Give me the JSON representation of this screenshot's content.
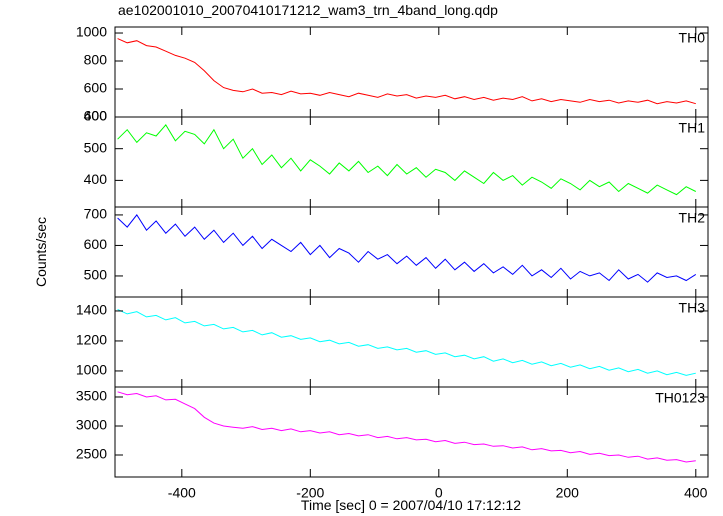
{
  "title": "ae102001010_20070410171212_wam3_trn_4band_long.qdp",
  "y_label": "Counts/sec",
  "x_label": "Time [sec] 0 = 2007/04/10 17:12:12",
  "chart_data": [
    {
      "type": "line",
      "xlim": [
        -504,
        419
      ],
      "xticks": [
        -400,
        -200,
        0,
        200,
        400
      ],
      "ylim": [
        400,
        1043
      ],
      "yticks": [
        400,
        600,
        800,
        1000
      ],
      "x": [
        -500,
        -485,
        -470,
        -455,
        -440,
        -425,
        -410,
        -395,
        -380,
        -365,
        -350,
        -335,
        -320,
        -305,
        -290,
        -275,
        -260,
        -245,
        -230,
        -215,
        -200,
        -185,
        -170,
        -155,
        -140,
        -125,
        -110,
        -95,
        -80,
        -65,
        -50,
        -35,
        -20,
        -5,
        10,
        25,
        40,
        55,
        70,
        85,
        100,
        115,
        130,
        145,
        160,
        175,
        190,
        205,
        220,
        235,
        250,
        265,
        280,
        295,
        310,
        325,
        340,
        355,
        370,
        385,
        400
      ],
      "series": [
        {
          "name": "TH0",
          "color": "#ff0000",
          "values": [
            960,
            930,
            945,
            910,
            900,
            870,
            840,
            820,
            790,
            730,
            660,
            610,
            590,
            580,
            600,
            570,
            575,
            560,
            585,
            565,
            570,
            555,
            575,
            560,
            545,
            570,
            555,
            540,
            565,
            550,
            560,
            535,
            550,
            540,
            555,
            530,
            545,
            525,
            540,
            520,
            535,
            525,
            545,
            515,
            530,
            510,
            525,
            515,
            505,
            525,
            510,
            520,
            500,
            515,
            505,
            520,
            495,
            510,
            500,
            515,
            495
          ]
        }
      ]
    },
    {
      "type": "line",
      "xlim": [
        -504,
        419
      ],
      "xticks": [
        -400,
        -200,
        0,
        200,
        400
      ],
      "ylim": [
        316,
        600
      ],
      "yticks": [
        400,
        500,
        600
      ],
      "x": [
        -500,
        -485,
        -470,
        -455,
        -440,
        -425,
        -410,
        -395,
        -380,
        -365,
        -350,
        -335,
        -320,
        -305,
        -290,
        -275,
        -260,
        -245,
        -230,
        -215,
        -200,
        -185,
        -170,
        -155,
        -140,
        -125,
        -110,
        -95,
        -80,
        -65,
        -50,
        -35,
        -20,
        -5,
        10,
        25,
        40,
        55,
        70,
        85,
        100,
        115,
        130,
        145,
        160,
        175,
        190,
        205,
        220,
        235,
        250,
        265,
        280,
        295,
        310,
        325,
        340,
        355,
        370,
        385,
        400
      ],
      "series": [
        {
          "name": "TH1",
          "color": "#00ff00",
          "values": [
            530,
            560,
            520,
            550,
            540,
            575,
            525,
            555,
            545,
            515,
            560,
            500,
            530,
            470,
            500,
            450,
            480,
            440,
            470,
            430,
            465,
            445,
            420,
            455,
            430,
            460,
            425,
            445,
            415,
            450,
            420,
            440,
            410,
            435,
            425,
            400,
            430,
            410,
            390,
            425,
            400,
            415,
            385,
            410,
            395,
            375,
            405,
            390,
            370,
            400,
            380,
            395,
            365,
            390,
            375,
            360,
            385,
            370,
            355,
            380,
            365
          ]
        }
      ]
    },
    {
      "type": "line",
      "xlim": [
        -504,
        419
      ],
      "xticks": [
        -400,
        -200,
        0,
        200,
        400
      ],
      "ylim": [
        431,
        726
      ],
      "yticks": [
        500,
        600,
        700
      ],
      "x": [
        -500,
        -485,
        -470,
        -455,
        -440,
        -425,
        -410,
        -395,
        -380,
        -365,
        -350,
        -335,
        -320,
        -305,
        -290,
        -275,
        -260,
        -245,
        -230,
        -215,
        -200,
        -185,
        -170,
        -155,
        -140,
        -125,
        -110,
        -95,
        -80,
        -65,
        -50,
        -35,
        -20,
        -5,
        10,
        25,
        40,
        55,
        70,
        85,
        100,
        115,
        130,
        145,
        160,
        175,
        190,
        205,
        220,
        235,
        250,
        265,
        280,
        295,
        310,
        325,
        340,
        355,
        370,
        385,
        400
      ],
      "series": [
        {
          "name": "TH2",
          "color": "#0000ff",
          "values": [
            690,
            660,
            700,
            650,
            680,
            640,
            670,
            630,
            660,
            620,
            650,
            610,
            640,
            600,
            630,
            590,
            620,
            600,
            580,
            610,
            570,
            600,
            560,
            590,
            575,
            545,
            580,
            555,
            570,
            540,
            565,
            535,
            560,
            525,
            555,
            520,
            545,
            515,
            540,
            510,
            530,
            505,
            535,
            500,
            520,
            495,
            525,
            490,
            515,
            500,
            510,
            485,
            520,
            490,
            505,
            480,
            510,
            495,
            500,
            485,
            505
          ]
        }
      ]
    },
    {
      "type": "line",
      "xlim": [
        -504,
        419
      ],
      "xticks": [
        -400,
        -200,
        0,
        200,
        400
      ],
      "ylim": [
        893,
        1493
      ],
      "yticks": [
        1000,
        1200,
        1400
      ],
      "x": [
        -500,
        -485,
        -470,
        -455,
        -440,
        -425,
        -410,
        -395,
        -380,
        -365,
        -350,
        -335,
        -320,
        -305,
        -290,
        -275,
        -260,
        -245,
        -230,
        -215,
        -200,
        -185,
        -170,
        -155,
        -140,
        -125,
        -110,
        -95,
        -80,
        -65,
        -50,
        -35,
        -20,
        -5,
        10,
        25,
        40,
        55,
        70,
        85,
        100,
        115,
        130,
        145,
        160,
        175,
        190,
        205,
        220,
        235,
        250,
        265,
        280,
        295,
        310,
        325,
        340,
        355,
        370,
        385,
        400
      ],
      "series": [
        {
          "name": "TH3",
          "color": "#00ffff",
          "values": [
            1410,
            1380,
            1395,
            1360,
            1370,
            1340,
            1355,
            1320,
            1330,
            1300,
            1310,
            1280,
            1290,
            1260,
            1270,
            1240,
            1255,
            1225,
            1235,
            1210,
            1220,
            1195,
            1205,
            1180,
            1190,
            1165,
            1175,
            1150,
            1160,
            1140,
            1150,
            1125,
            1135,
            1110,
            1120,
            1095,
            1105,
            1080,
            1095,
            1065,
            1080,
            1055,
            1070,
            1045,
            1060,
            1035,
            1050,
            1025,
            1040,
            1015,
            1030,
            1005,
            1020,
            995,
            1010,
            985,
            1000,
            975,
            990,
            970,
            985
          ]
        }
      ]
    },
    {
      "type": "line",
      "xlim": [
        -504,
        419
      ],
      "xticks": [
        -400,
        -200,
        0,
        200,
        400
      ],
      "ylim": [
        2121,
        3672
      ],
      "yticks": [
        2500,
        3000,
        3500
      ],
      "x": [
        -500,
        -485,
        -470,
        -455,
        -440,
        -425,
        -410,
        -395,
        -380,
        -365,
        -350,
        -335,
        -320,
        -305,
        -290,
        -275,
        -260,
        -245,
        -230,
        -215,
        -200,
        -185,
        -170,
        -155,
        -140,
        -125,
        -110,
        -95,
        -80,
        -65,
        -50,
        -35,
        -20,
        -5,
        10,
        25,
        40,
        55,
        70,
        85,
        100,
        115,
        130,
        145,
        160,
        175,
        190,
        205,
        220,
        235,
        250,
        265,
        280,
        295,
        310,
        325,
        340,
        355,
        370,
        385,
        400
      ],
      "series": [
        {
          "name": "TH0123",
          "color": "#ff00ff",
          "values": [
            3590,
            3540,
            3560,
            3500,
            3520,
            3450,
            3460,
            3380,
            3300,
            3150,
            3050,
            3000,
            2980,
            2960,
            2990,
            2940,
            2960,
            2920,
            2950,
            2900,
            2920,
            2880,
            2900,
            2850,
            2870,
            2830,
            2850,
            2800,
            2820,
            2780,
            2800,
            2760,
            2770,
            2730,
            2750,
            2700,
            2720,
            2680,
            2690,
            2650,
            2660,
            2620,
            2640,
            2590,
            2610,
            2570,
            2580,
            2540,
            2560,
            2510,
            2530,
            2490,
            2500,
            2460,
            2480,
            2430,
            2450,
            2410,
            2420,
            2380,
            2400
          ]
        }
      ]
    }
  ]
}
